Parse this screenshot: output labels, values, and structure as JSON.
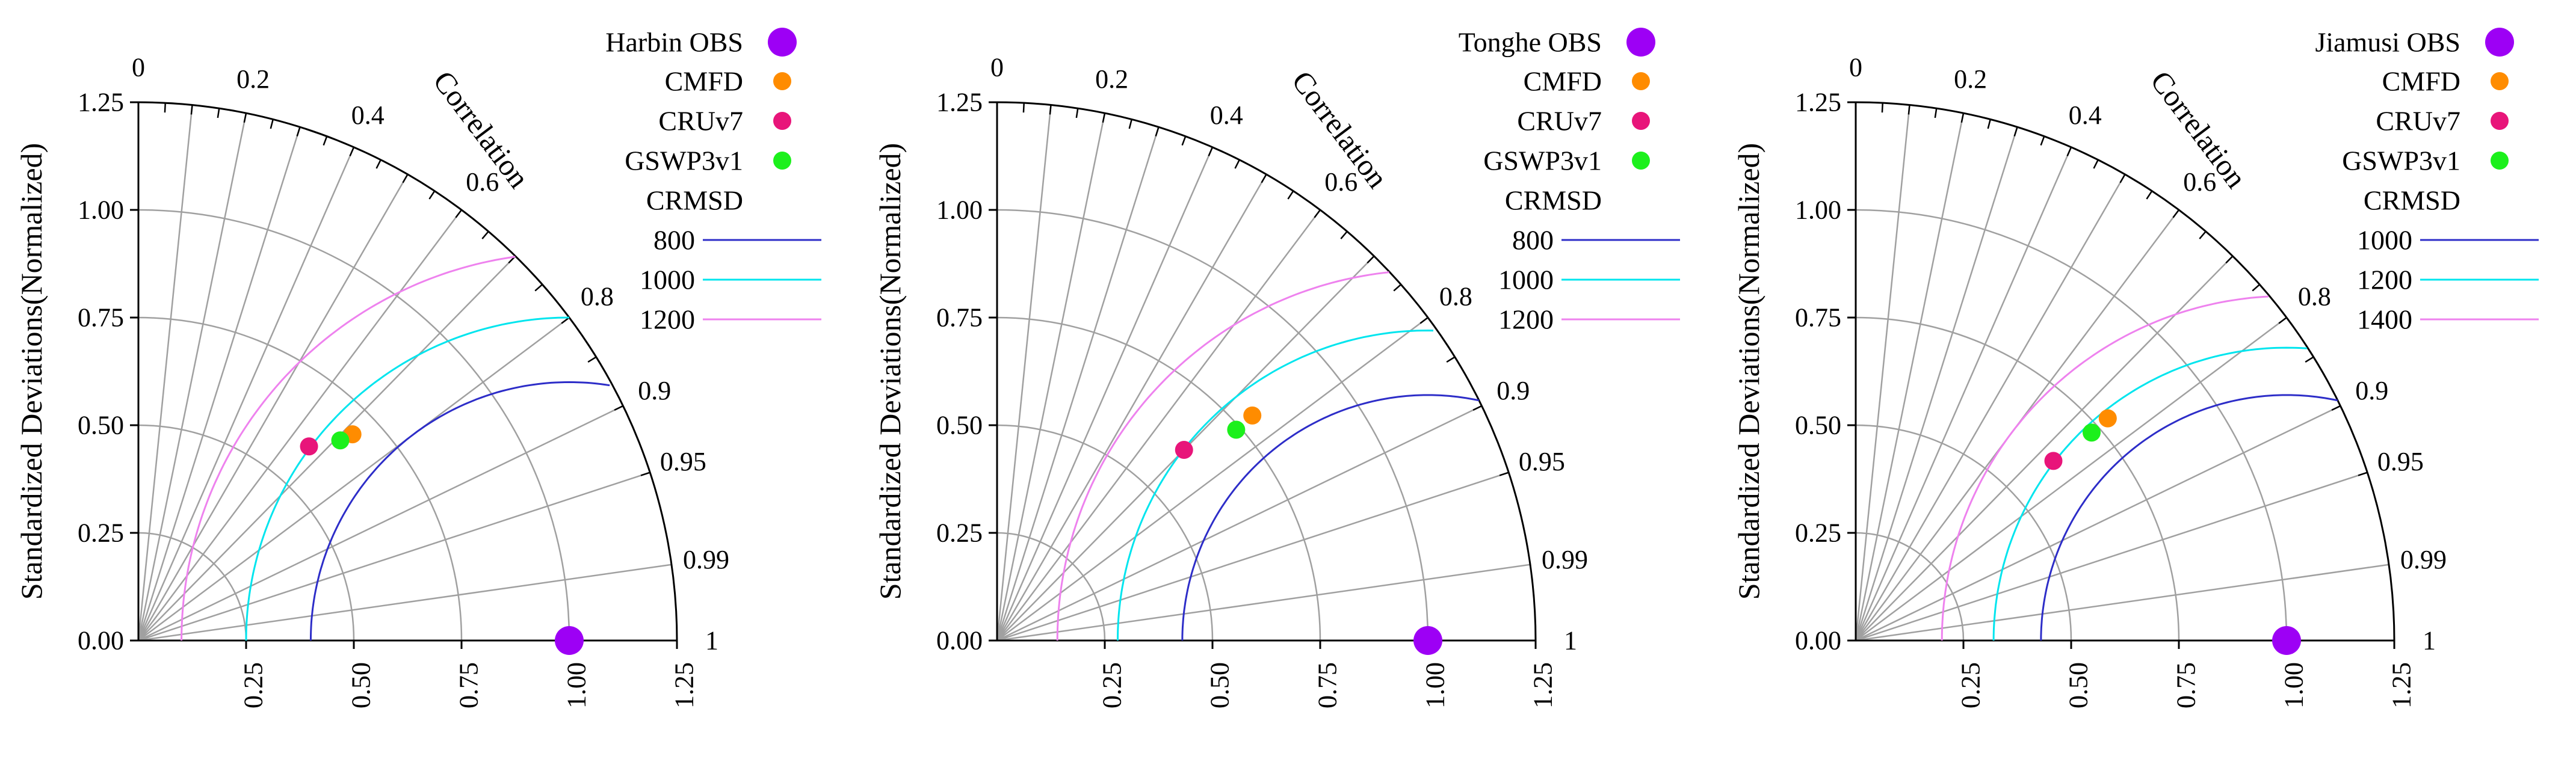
{
  "chart_data": [
    {
      "type": "taylor-diagram",
      "ylabel": "Standardized Deviations(Normalized)",
      "angular_label": "Correlation",
      "std_ticks": [
        "0.00",
        "0.25",
        "0.50",
        "0.75",
        "1.00",
        "1.25"
      ],
      "x_ticks": [
        "0.25",
        "0.50",
        "0.75",
        "1.00",
        "1.25"
      ],
      "corr_ticks": [
        "0",
        "0.2",
        "0.4",
        "0.6",
        "0.8",
        "0.9",
        "0.95",
        "0.99",
        "1"
      ],
      "std_max": 1.25,
      "reference": {
        "name": "Harbin OBS",
        "std": 1.0,
        "color": "#9d00f5"
      },
      "models": [
        {
          "name": "CMFD",
          "std": 0.69,
          "corr": 0.72,
          "color": "#ff8c00"
        },
        {
          "name": "CRUv7",
          "std": 0.6,
          "corr": 0.66,
          "color": "#e8157a"
        },
        {
          "name": "GSWP3v1",
          "std": 0.66,
          "corr": 0.71,
          "color": "#1cf01c"
        }
      ],
      "crmsd_title": "CRMSD",
      "crmsd": [
        {
          "label": "800",
          "radius": 0.6,
          "color": "#2d2dc8"
        },
        {
          "label": "1000",
          "radius": 0.75,
          "color": "#00e5ee"
        },
        {
          "label": "1200",
          "radius": 0.9,
          "color": "#ee82ee"
        }
      ]
    },
    {
      "type": "taylor-diagram",
      "ylabel": "Standardized Deviations(Normalized)",
      "angular_label": "Correlation",
      "std_ticks": [
        "0.00",
        "0.25",
        "0.50",
        "0.75",
        "1.00",
        "1.25"
      ],
      "x_ticks": [
        "0.25",
        "0.50",
        "0.75",
        "1.00",
        "1.25"
      ],
      "corr_ticks": [
        "0",
        "0.2",
        "0.4",
        "0.6",
        "0.8",
        "0.9",
        "0.95",
        "0.99",
        "1"
      ],
      "std_max": 1.25,
      "reference": {
        "name": "Tonghe OBS",
        "std": 1.0,
        "color": "#9d00f5"
      },
      "models": [
        {
          "name": "CMFD",
          "std": 0.79,
          "corr": 0.75,
          "color": "#ff8c00"
        },
        {
          "name": "CRUv7",
          "std": 0.62,
          "corr": 0.7,
          "color": "#e8157a"
        },
        {
          "name": "GSWP3v1",
          "std": 0.74,
          "corr": 0.75,
          "color": "#1cf01c"
        }
      ],
      "crmsd_title": "CRMSD",
      "crmsd": [
        {
          "label": "800",
          "radius": 0.57,
          "color": "#2d2dc8"
        },
        {
          "label": "1000",
          "radius": 0.72,
          "color": "#00e5ee"
        },
        {
          "label": "1200",
          "radius": 0.86,
          "color": "#ee82ee"
        }
      ]
    },
    {
      "type": "taylor-diagram",
      "ylabel": "Standardized Deviations(Normalized)",
      "angular_label": "Correlation",
      "std_ticks": [
        "0.00",
        "0.25",
        "0.50",
        "0.75",
        "1.00",
        "1.25"
      ],
      "x_ticks": [
        "0.25",
        "0.50",
        "0.75",
        "1.00",
        "1.25"
      ],
      "corr_ticks": [
        "0",
        "0.2",
        "0.4",
        "0.6",
        "0.8",
        "0.9",
        "0.95",
        "0.99",
        "1"
      ],
      "std_max": 1.25,
      "reference": {
        "name": "Jiamusi OBS",
        "std": 1.0,
        "color": "#9d00f5"
      },
      "models": [
        {
          "name": "CMFD",
          "std": 0.78,
          "corr": 0.75,
          "color": "#ff8c00"
        },
        {
          "name": "CRUv7",
          "std": 0.62,
          "corr": 0.74,
          "color": "#e8157a"
        },
        {
          "name": "GSWP3v1",
          "std": 0.73,
          "corr": 0.75,
          "color": "#1cf01c"
        }
      ],
      "crmsd_title": "CRMSD",
      "crmsd": [
        {
          "label": "1000",
          "radius": 0.57,
          "color": "#2d2dc8"
        },
        {
          "label": "1200",
          "radius": 0.68,
          "color": "#00e5ee"
        },
        {
          "label": "1400",
          "radius": 0.8,
          "color": "#ee82ee"
        }
      ]
    }
  ]
}
